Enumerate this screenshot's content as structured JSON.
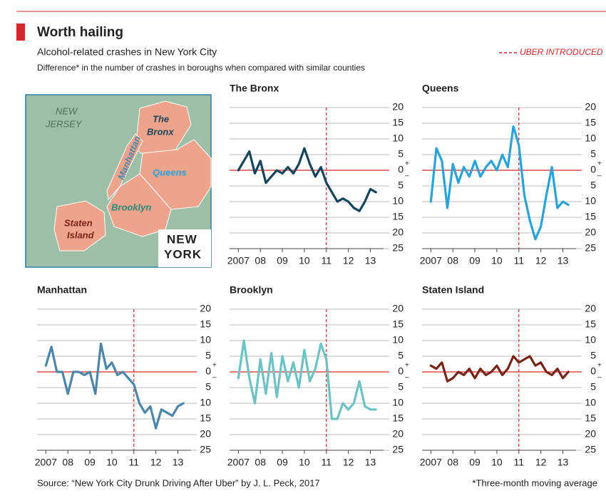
{
  "header": {
    "title": "Worth hailing",
    "subtitle": "Alcohol-related crashes in New York City",
    "note": "Difference* in the number of crashes in boroughs when compared with similar counties",
    "legend": "UBER INTRODUCED"
  },
  "axis_signs": {
    "plus": "+",
    "minus": "–"
  },
  "map": {
    "labels": [
      "NEW",
      "JERSEY",
      "The",
      "Bronx",
      "Manhattan",
      "Queens",
      "Brooklyn",
      "Staten",
      "Island",
      "NEW",
      "YORK"
    ]
  },
  "chart_data": [
    {
      "type": "line",
      "title": "The Bronx",
      "color": "#17455e",
      "x": [
        2007,
        2007.25,
        2007.5,
        2007.75,
        2008,
        2008.25,
        2008.5,
        2008.75,
        2009,
        2009.25,
        2009.5,
        2009.75,
        2010,
        2010.25,
        2010.5,
        2010.75,
        2011,
        2011.25,
        2011.5,
        2011.75,
        2012,
        2012.25,
        2012.5,
        2012.75,
        2013,
        2013.25
      ],
      "values": [
        0,
        3,
        6,
        -1,
        3,
        -4,
        -2,
        0,
        -1,
        1,
        -1,
        2,
        7,
        2,
        -2,
        1,
        -4,
        -7,
        -10,
        -9,
        -10,
        -12,
        -13,
        -10,
        -6,
        -7
      ],
      "xlim": [
        2006.6,
        2013.6
      ],
      "ylim": [
        -25,
        20
      ],
      "xticks": [
        {
          "value": 2007,
          "label": "2007"
        },
        {
          "value": 2008,
          "label": "08"
        },
        {
          "value": 2009,
          "label": "09"
        },
        {
          "value": 2010,
          "label": "10"
        },
        {
          "value": 2011,
          "label": "11"
        },
        {
          "value": 2012,
          "label": "12"
        },
        {
          "value": 2013,
          "label": "13"
        }
      ],
      "yticks": [
        20,
        15,
        10,
        5,
        0,
        {
          "value": -5,
          "label": "5"
        },
        {
          "value": -10,
          "label": "10"
        },
        {
          "value": -15,
          "label": "15"
        },
        {
          "value": -20,
          "label": "20"
        },
        {
          "value": -25,
          "label": "25"
        }
      ],
      "event_x": 2011,
      "grid": true
    },
    {
      "type": "line",
      "title": "Queens",
      "color": "#2aa3d8",
      "x": [
        2007,
        2007.25,
        2007.5,
        2007.75,
        2008,
        2008.25,
        2008.5,
        2008.75,
        2009,
        2009.25,
        2009.5,
        2009.75,
        2010,
        2010.25,
        2010.5,
        2010.75,
        2011,
        2011.25,
        2011.5,
        2011.75,
        2012,
        2012.25,
        2012.5,
        2012.75,
        2013,
        2013.25
      ],
      "values": [
        -10,
        7,
        3,
        -12,
        2,
        -4,
        1,
        -2,
        3,
        -2,
        1,
        3,
        0,
        5,
        1,
        14,
        8,
        -8,
        -16,
        -22,
        -18,
        -8,
        1,
        -12,
        -10,
        -11
      ],
      "xlim": [
        2006.6,
        2013.6
      ],
      "ylim": [
        -25,
        20
      ],
      "xticks": [
        {
          "value": 2007,
          "label": "2007"
        },
        {
          "value": 2008,
          "label": "08"
        },
        {
          "value": 2009,
          "label": "09"
        },
        {
          "value": 2010,
          "label": "10"
        },
        {
          "value": 2011,
          "label": "11"
        },
        {
          "value": 2012,
          "label": "12"
        },
        {
          "value": 2013,
          "label": "13"
        }
      ],
      "yticks": [
        20,
        15,
        10,
        5,
        0,
        {
          "value": -5,
          "label": "5"
        },
        {
          "value": -10,
          "label": "10"
        },
        {
          "value": -15,
          "label": "15"
        },
        {
          "value": -20,
          "label": "20"
        },
        {
          "value": -25,
          "label": "25"
        }
      ],
      "event_x": 2011,
      "grid": true
    },
    {
      "type": "line",
      "title": "Manhattan",
      "color": "#4c86a8",
      "x": [
        2007,
        2007.25,
        2007.5,
        2007.75,
        2008,
        2008.25,
        2008.5,
        2008.75,
        2009,
        2009.25,
        2009.5,
        2009.75,
        2010,
        2010.25,
        2010.5,
        2010.75,
        2011,
        2011.25,
        2011.5,
        2011.75,
        2012,
        2012.25,
        2012.5,
        2012.75,
        2013,
        2013.25
      ],
      "values": [
        2,
        8,
        0,
        0,
        -7,
        0,
        0,
        -1,
        0,
        -7,
        9,
        1,
        3,
        -1,
        0,
        -2,
        -4,
        -10,
        -13,
        -11,
        -18,
        -12,
        -13,
        -14,
        -11,
        -10
      ],
      "xlim": [
        2006.6,
        2013.6
      ],
      "ylim": [
        -25,
        20
      ],
      "xticks": [
        {
          "value": 2007,
          "label": "2007"
        },
        {
          "value": 2008,
          "label": "08"
        },
        {
          "value": 2009,
          "label": "09"
        },
        {
          "value": 2010,
          "label": "10"
        },
        {
          "value": 2011,
          "label": "11"
        },
        {
          "value": 2012,
          "label": "12"
        },
        {
          "value": 2013,
          "label": "13"
        }
      ],
      "yticks": [
        20,
        15,
        10,
        5,
        0,
        {
          "value": -5,
          "label": "5"
        },
        {
          "value": -10,
          "label": "10"
        },
        {
          "value": -15,
          "label": "15"
        },
        {
          "value": -20,
          "label": "20"
        },
        {
          "value": -25,
          "label": "25"
        }
      ],
      "event_x": 2011,
      "grid": true
    },
    {
      "type": "line",
      "title": "Brooklyn",
      "color": "#6cc2c4",
      "x": [
        2007,
        2007.25,
        2007.5,
        2007.75,
        2008,
        2008.25,
        2008.5,
        2008.75,
        2009,
        2009.25,
        2009.5,
        2009.75,
        2010,
        2010.25,
        2010.5,
        2010.75,
        2011,
        2011.25,
        2011.5,
        2011.75,
        2012,
        2012.25,
        2012.5,
        2012.75,
        2013,
        2013.25
      ],
      "values": [
        -2,
        10,
        -2,
        -10,
        4,
        -7,
        6,
        -8,
        5,
        -3,
        3,
        -5,
        7,
        -3,
        1,
        9,
        4,
        -15,
        -15,
        -10,
        -12,
        -10,
        -3,
        -11,
        -12,
        -12
      ],
      "xlim": [
        2006.6,
        2013.6
      ],
      "ylim": [
        -25,
        20
      ],
      "xticks": [
        {
          "value": 2007,
          "label": "2007"
        },
        {
          "value": 2008,
          "label": "08"
        },
        {
          "value": 2009,
          "label": "09"
        },
        {
          "value": 2010,
          "label": "10"
        },
        {
          "value": 2011,
          "label": "11"
        },
        {
          "value": 2012,
          "label": "12"
        },
        {
          "value": 2013,
          "label": "13"
        }
      ],
      "yticks": [
        20,
        15,
        10,
        5,
        0,
        {
          "value": -5,
          "label": "5"
        },
        {
          "value": -10,
          "label": "10"
        },
        {
          "value": -15,
          "label": "15"
        },
        {
          "value": -20,
          "label": "20"
        },
        {
          "value": -25,
          "label": "25"
        }
      ],
      "event_x": 2011,
      "grid": true
    },
    {
      "type": "line",
      "title": "Staten Island",
      "color": "#7a2418",
      "x": [
        2007,
        2007.25,
        2007.5,
        2007.75,
        2008,
        2008.25,
        2008.5,
        2008.75,
        2009,
        2009.25,
        2009.5,
        2009.75,
        2010,
        2010.25,
        2010.5,
        2010.75,
        2011,
        2011.25,
        2011.5,
        2011.75,
        2012,
        2012.25,
        2012.5,
        2012.75,
        2013,
        2013.25
      ],
      "values": [
        2,
        1,
        3,
        -3,
        -2,
        0,
        -1,
        1,
        -2,
        1,
        -1,
        0,
        2,
        -1,
        1,
        5,
        3,
        4,
        5,
        2,
        3,
        0,
        -1,
        1,
        -2,
        0
      ],
      "xlim": [
        2006.6,
        2013.6
      ],
      "ylim": [
        -25,
        20
      ],
      "xticks": [
        {
          "value": 2007,
          "label": "2007"
        },
        {
          "value": 2008,
          "label": "08"
        },
        {
          "value": 2009,
          "label": "09"
        },
        {
          "value": 2010,
          "label": "10"
        },
        {
          "value": 2011,
          "label": "11"
        },
        {
          "value": 2012,
          "label": "12"
        },
        {
          "value": 2013,
          "label": "13"
        }
      ],
      "yticks": [
        20,
        15,
        10,
        5,
        0,
        {
          "value": -5,
          "label": "5"
        },
        {
          "value": -10,
          "label": "10"
        },
        {
          "value": -15,
          "label": "15"
        },
        {
          "value": -20,
          "label": "20"
        },
        {
          "value": -25,
          "label": "25"
        }
      ],
      "event_x": 2011,
      "grid": true
    }
  ],
  "footer": {
    "source": "Source: “New York City Drunk Driving After Uber” by J. L. Peck, 2017",
    "footnote": "*Three-month moving average"
  }
}
